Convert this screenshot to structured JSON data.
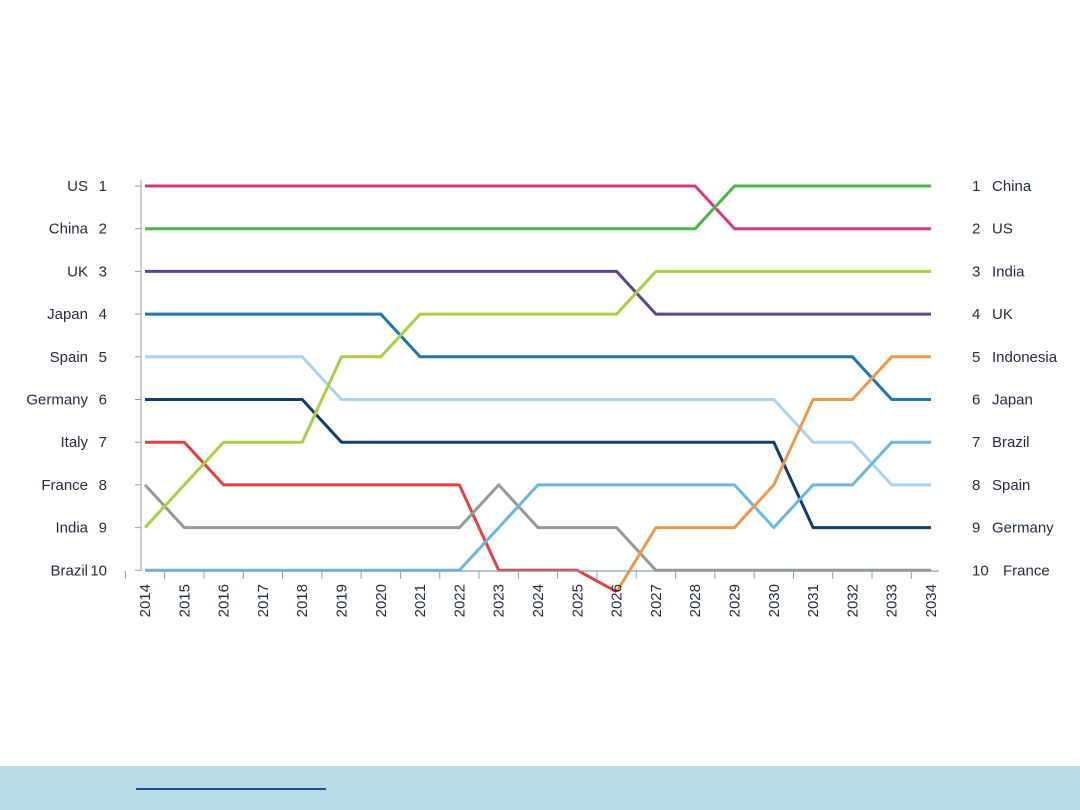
{
  "chart_data": {
    "type": "line",
    "title": "",
    "xlabel": "",
    "ylabel": "",
    "x": [
      "2014",
      "2015",
      "2016",
      "2017",
      "2018",
      "2019",
      "2020",
      "2021",
      "2022",
      "2023",
      "2024",
      "2025",
      "2026",
      "2027",
      "2028",
      "2029",
      "2030",
      "2031",
      "2032",
      "2033",
      "2034"
    ],
    "ylim": [
      1,
      10
    ],
    "y_inverted": true,
    "left_rank_labels": [
      {
        "name": "US",
        "rank": "1"
      },
      {
        "name": "China",
        "rank": "2"
      },
      {
        "name": "UK",
        "rank": "3"
      },
      {
        "name": "Japan",
        "rank": "4"
      },
      {
        "name": "Spain",
        "rank": "5"
      },
      {
        "name": "Germany",
        "rank": "6"
      },
      {
        "name": "Italy",
        "rank": "7"
      },
      {
        "name": "France",
        "rank": "8"
      },
      {
        "name": "India",
        "rank": "9"
      },
      {
        "name": "Brazil",
        "rank": "10"
      }
    ],
    "right_rank_labels": [
      {
        "rank": "1",
        "name": "China"
      },
      {
        "rank": "2",
        "name": "US"
      },
      {
        "rank": "3",
        "name": "India"
      },
      {
        "rank": "4",
        "name": "UK"
      },
      {
        "rank": "5",
        "name": "Indonesia"
      },
      {
        "rank": "6",
        "name": "Japan"
      },
      {
        "rank": "7",
        "name": "Brazil"
      },
      {
        "rank": "8",
        "name": "Spain"
      },
      {
        "rank": "9",
        "name": "Germany"
      },
      {
        "rank": "10",
        "name": "France"
      }
    ],
    "series": [
      {
        "id": "us",
        "color": "#d63a7e",
        "values": [
          1,
          1,
          1,
          1,
          1,
          1,
          1,
          1,
          1,
          1,
          1,
          1,
          1,
          1,
          1,
          2,
          2,
          2,
          2,
          2,
          2
        ]
      },
      {
        "id": "china",
        "color": "#4cb748",
        "values": [
          2,
          2,
          2,
          2,
          2,
          2,
          2,
          2,
          2,
          2,
          2,
          2,
          2,
          2,
          2,
          1,
          1,
          1,
          1,
          1,
          1
        ]
      },
      {
        "id": "uk",
        "color": "#5b4591",
        "values": [
          3,
          3,
          3,
          3,
          3,
          3,
          3,
          3,
          3,
          3,
          3,
          3,
          3,
          4,
          4,
          4,
          4,
          4,
          4,
          4,
          4
        ]
      },
      {
        "id": "japan",
        "color": "#1f75b0",
        "values": [
          4,
          4,
          4,
          4,
          4,
          4,
          4,
          5,
          5,
          5,
          5,
          5,
          5,
          5,
          5,
          5,
          5,
          5,
          5,
          6,
          6
        ]
      },
      {
        "id": "spain",
        "color": "#a9d4ec",
        "values": [
          5,
          5,
          5,
          5,
          5,
          6,
          6,
          6,
          6,
          6,
          6,
          6,
          6,
          6,
          6,
          6,
          6,
          7,
          7,
          8,
          8
        ]
      },
      {
        "id": "germany",
        "color": "#123d6b",
        "values": [
          6,
          6,
          6,
          6,
          6,
          7,
          7,
          7,
          7,
          7,
          7,
          7,
          7,
          7,
          7,
          7,
          7,
          9,
          9,
          9,
          9
        ]
      },
      {
        "id": "italy",
        "color": "#e0423f",
        "values": [
          7,
          7,
          8,
          8,
          8,
          8,
          8,
          8,
          8,
          10,
          10,
          10,
          10.5,
          null,
          null,
          null,
          null,
          null,
          null,
          null,
          null
        ]
      },
      {
        "id": "france",
        "color": "#979797",
        "values": [
          8,
          9,
          9,
          9,
          9,
          9,
          9,
          9,
          9,
          8,
          9,
          9,
          9,
          10,
          10,
          10,
          10,
          10,
          10,
          10,
          10
        ]
      },
      {
        "id": "india",
        "color": "#a9cf44",
        "values": [
          9,
          8,
          7,
          7,
          7,
          5,
          5,
          4,
          4,
          4,
          4,
          4,
          4,
          3,
          3,
          3,
          3,
          3,
          3,
          3,
          3
        ]
      },
      {
        "id": "brazil",
        "color": "#6bb7e0",
        "values": [
          10,
          10,
          10,
          10,
          10,
          10,
          10,
          10,
          10,
          9,
          8,
          8,
          8,
          8,
          8,
          8,
          9,
          8,
          8,
          7,
          7
        ]
      },
      {
        "id": "indonesia",
        "color": "#f0974a",
        "values": [
          null,
          null,
          null,
          null,
          null,
          null,
          null,
          null,
          null,
          null,
          null,
          null,
          10.5,
          9,
          9,
          9,
          8,
          6,
          6,
          5,
          5
        ]
      }
    ]
  }
}
